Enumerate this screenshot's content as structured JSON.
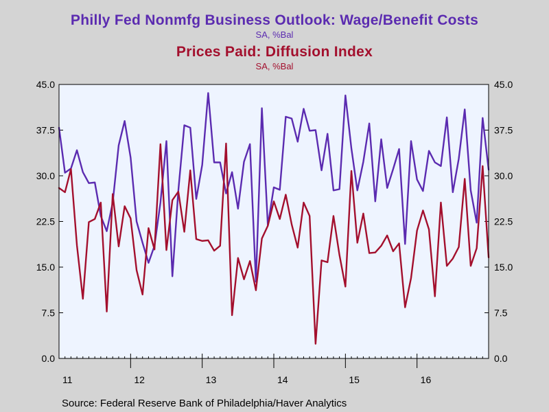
{
  "titles": {
    "series1_title": "Philly Fed Nonmfg Business Outlook: Wage/Benefit Costs",
    "series1_sub": "SA, %Bal",
    "series2_title": "Prices Paid: Diffusion Index",
    "series2_sub": "SA, %Bal"
  },
  "source": "Source:  Federal Reserve Bank of Philadelphia/Haver Analytics",
  "colors": {
    "series1": "#5b2bb0",
    "series2": "#a30f2d",
    "plot_bg": "#eef4ff",
    "page_bg": "#d4d4d4"
  },
  "chart_data": {
    "type": "line",
    "x_start": "2011-01",
    "x_end": "2016-12",
    "x_tick_labels": [
      "11",
      "12",
      "13",
      "14",
      "15",
      "16"
    ],
    "y_ticks": [
      "0.0",
      "7.5",
      "15.0",
      "22.5",
      "30.0",
      "37.5",
      "45.0"
    ],
    "ylim": [
      0,
      45
    ],
    "grid": false,
    "series": [
      {
        "name": "Wage/Benefit Costs",
        "values": [
          37.9,
          30.5,
          31.2,
          34.2,
          30.6,
          28.8,
          28.9,
          23.4,
          20.9,
          25.6,
          35.0,
          39.0,
          33.0,
          22.5,
          19.0,
          15.7,
          18.5,
          25.6,
          35.7,
          13.5,
          27.6,
          38.3,
          37.9,
          26.2,
          31.8,
          43.6,
          32.2,
          32.2,
          27.1,
          30.6,
          24.6,
          32.3,
          35.2,
          12.6,
          41.1,
          21.8,
          28.1,
          27.7,
          39.7,
          39.4,
          35.6,
          41.0,
          37.4,
          37.5,
          30.9,
          36.9,
          27.6,
          27.8,
          43.2,
          34.5,
          27.6,
          32.3,
          38.6,
          25.8,
          36.0,
          28.0,
          31.1,
          34.4,
          18.8,
          35.7,
          29.4,
          27.5,
          34.1,
          32.2,
          31.6,
          39.6,
          27.3,
          32.8,
          40.9,
          27.6,
          22.3,
          39.5,
          31.0
        ],
        "color": "#5b2bb0"
      },
      {
        "name": "Prices Paid",
        "values": [
          28.0,
          27.3,
          31.1,
          18.6,
          9.8,
          22.4,
          22.9,
          25.6,
          7.7,
          27.0,
          18.4,
          25.0,
          23.0,
          14.5,
          10.5,
          21.4,
          17.9,
          35.2,
          17.8,
          26.0,
          27.4,
          20.8,
          30.9,
          19.6,
          19.3,
          19.4,
          17.7,
          18.5,
          35.3,
          7.1,
          16.5,
          13.0,
          16.0,
          11.2,
          19.7,
          21.8,
          25.8,
          22.9,
          26.9,
          22.0,
          18.2,
          25.6,
          23.4,
          2.4,
          16.1,
          15.8,
          23.4,
          17.0,
          11.8,
          30.8,
          19.0,
          23.8,
          17.3,
          17.4,
          18.5,
          20.2,
          17.6,
          18.9,
          8.4,
          13.2,
          21.0,
          24.3,
          21.2,
          10.2,
          25.6,
          15.2,
          16.4,
          18.3,
          29.5,
          15.2,
          18.1,
          31.6,
          16.6
        ],
        "color": "#a30f2d"
      }
    ]
  }
}
